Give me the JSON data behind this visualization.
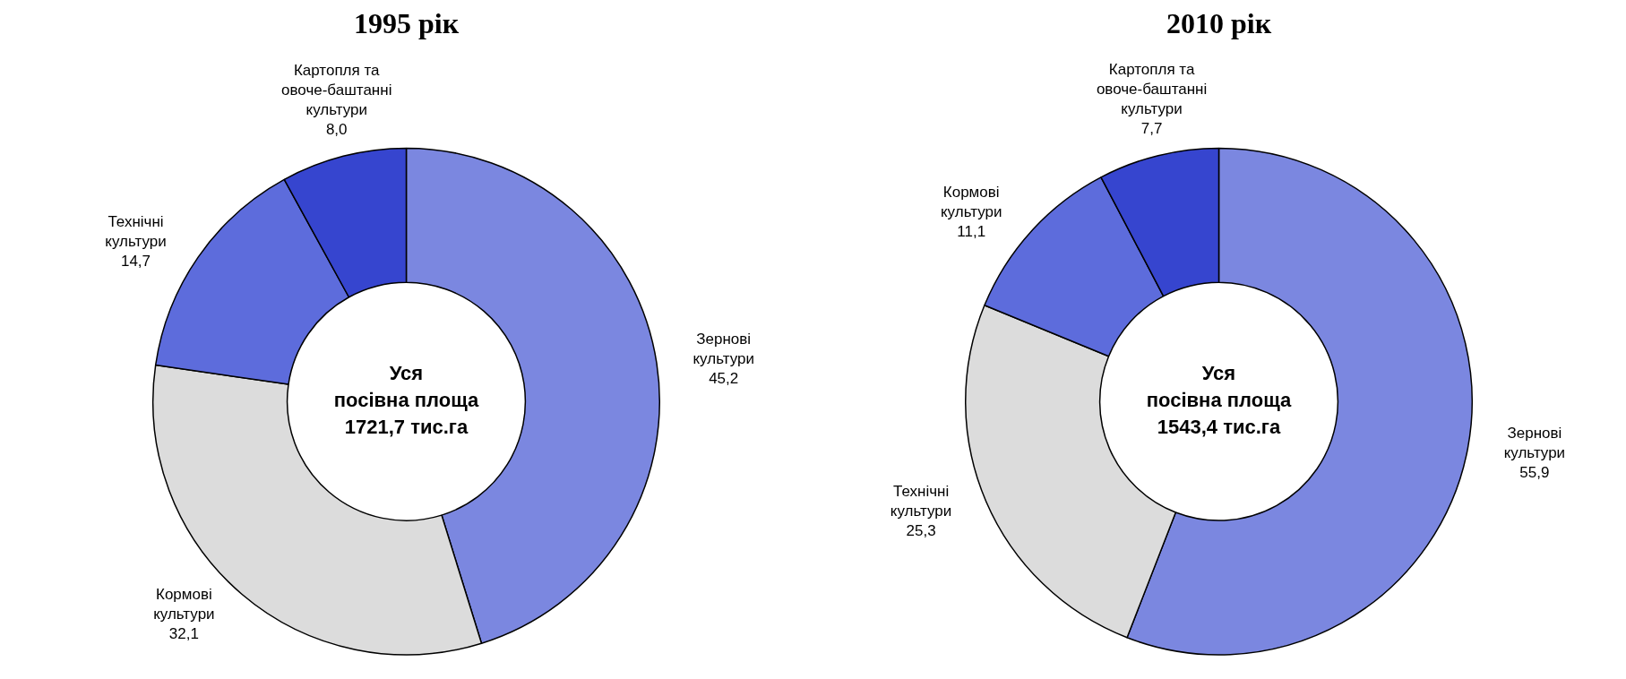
{
  "chart_data": [
    {
      "type": "donut",
      "title": "1995 рік",
      "categories": [
        "Зернові культури",
        "Кормові культури",
        "Технічні культури",
        "Картопля та овоче-баштанні культури"
      ],
      "values": [
        45.2,
        32.1,
        14.7,
        8.0
      ],
      "value_labels": [
        "45,2",
        "32,1",
        "14,7",
        "8,0"
      ],
      "colors": [
        "#7b87e0",
        "#dcdcdc",
        "#5d6cdc",
        "#3645cf"
      ],
      "annotations": [
        "Уся\nпосівна площа\n1721,7 тис.га"
      ],
      "legend": false
    },
    {
      "type": "donut",
      "title": "2010 рік",
      "categories": [
        "Зернові культури",
        "Технічні культури",
        "Кормові культури",
        "Картопля та овоче-баштанні культури"
      ],
      "values": [
        55.9,
        25.3,
        11.1,
        7.7
      ],
      "value_labels": [
        "55,9",
        "25,3",
        "11,1",
        "7,7"
      ],
      "colors": [
        "#7b87e0",
        "#dcdcdc",
        "#5d6cdc",
        "#3645cf"
      ],
      "annotations": [
        "Уся\nпосівна площа\n1543,4 тис.га"
      ],
      "legend": false
    }
  ]
}
